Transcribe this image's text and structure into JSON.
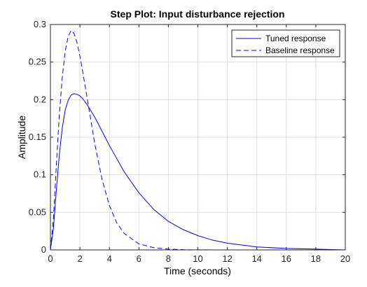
{
  "chart_data": {
    "type": "line",
    "title": "Step Plot: Input disturbance rejection",
    "xlabel": "Time (seconds)",
    "ylabel": "Amplitude",
    "xlim": [
      0,
      20
    ],
    "ylim": [
      0,
      0.3
    ],
    "xticks": [
      0,
      2,
      4,
      6,
      8,
      10,
      12,
      14,
      16,
      18,
      20
    ],
    "yticks": [
      0,
      0.05,
      0.1,
      0.15,
      0.2,
      0.25,
      0.3
    ],
    "ytick_labels": [
      "0",
      "0.05",
      "0.1",
      "0.15",
      "0.2",
      "0.25",
      "0.3"
    ],
    "grid": true,
    "legend_position": "top-right",
    "series": [
      {
        "name": "Tuned response",
        "color": "#0000ff",
        "style": "solid",
        "x": [
          0,
          0.2,
          0.4,
          0.6,
          0.8,
          1.0,
          1.2,
          1.4,
          1.6,
          1.8,
          2.0,
          2.2,
          2.5,
          3.0,
          3.5,
          4.0,
          5.0,
          6.0,
          7.0,
          8.0,
          9.0,
          10.0,
          11.0,
          12.0,
          14.0,
          16.0,
          18.0,
          20.0
        ],
        "y": [
          0,
          0.028,
          0.079,
          0.126,
          0.162,
          0.186,
          0.199,
          0.206,
          0.208,
          0.207,
          0.205,
          0.201,
          0.193,
          0.177,
          0.158,
          0.139,
          0.104,
          0.076,
          0.054,
          0.038,
          0.027,
          0.019,
          0.013,
          0.009,
          0.004,
          0.002,
          0.001,
          0.0
        ]
      },
      {
        "name": "Baseline response",
        "color": "#0000ff",
        "style": "dashed",
        "x": [
          0,
          0.2,
          0.4,
          0.6,
          0.8,
          1.0,
          1.2,
          1.4,
          1.6,
          1.8,
          2.0,
          2.2,
          2.5,
          3.0,
          3.5,
          4.0,
          4.5,
          5.0,
          6.0,
          7.0,
          8.0,
          9.0,
          10.0,
          12.0,
          14.0,
          20.0
        ],
        "y": [
          0,
          0.041,
          0.112,
          0.179,
          0.229,
          0.264,
          0.284,
          0.292,
          0.288,
          0.276,
          0.258,
          0.236,
          0.201,
          0.142,
          0.094,
          0.059,
          0.036,
          0.022,
          0.008,
          0.003,
          0.001,
          0.0003,
          0.0001,
          0.0,
          0.0,
          0.0
        ]
      }
    ]
  }
}
